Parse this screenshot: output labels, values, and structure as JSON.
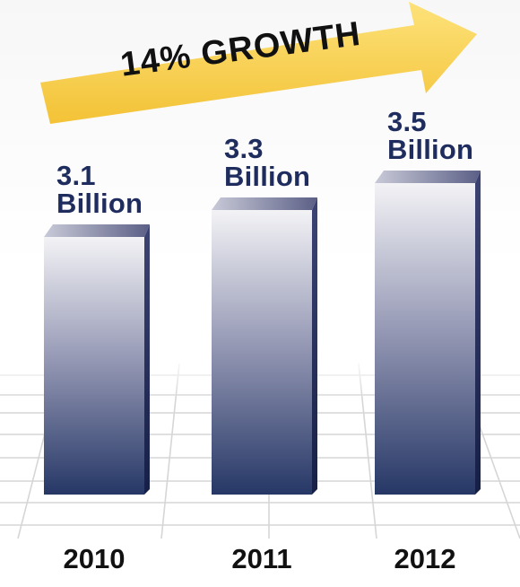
{
  "banner": {
    "text": "14% GROWTH",
    "color": "#f9d24a"
  },
  "chart_data": {
    "type": "bar",
    "categories": [
      "2010",
      "2011",
      "2012"
    ],
    "values": [
      3.1,
      3.3,
      3.5
    ],
    "unit": "Billion",
    "data_labels": [
      {
        "value": "3.1",
        "unit": "Billion"
      },
      {
        "value": "3.3",
        "unit": "Billion"
      },
      {
        "value": "3.5",
        "unit": "Billion"
      }
    ],
    "bar_color_top": "#f1f1f5",
    "bar_color_bottom": "#263766",
    "label_color": "#1e2c5e",
    "grid": true
  }
}
